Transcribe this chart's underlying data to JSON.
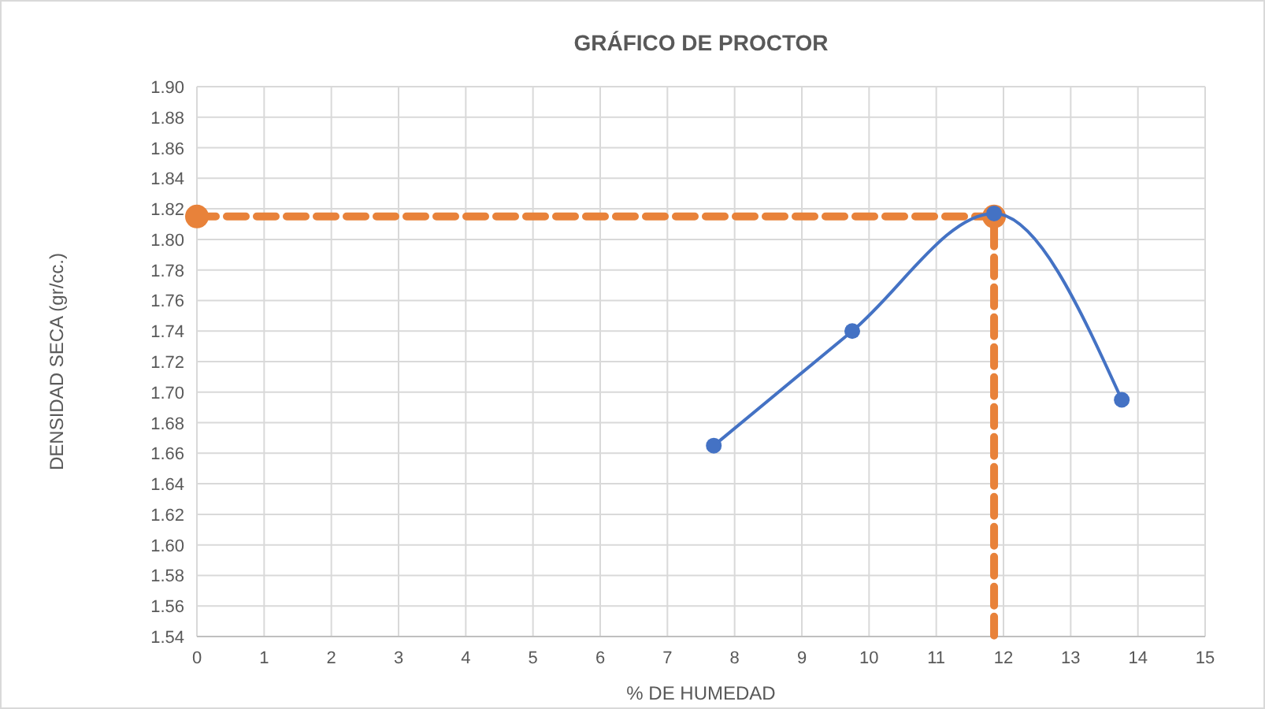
{
  "chart_data": {
    "type": "line",
    "title": "GRÁFICO DE PROCTOR",
    "xlabel": "% DE HUMEDAD",
    "ylabel": "DENSIDAD SECA (gr/cc.)",
    "xlim": [
      0,
      15
    ],
    "xticks": [
      0,
      1,
      2,
      3,
      4,
      5,
      6,
      7,
      8,
      9,
      10,
      11,
      12,
      13,
      14,
      15
    ],
    "ylim": [
      1.54,
      1.9
    ],
    "yticks": [
      {
        "value": 1.54,
        "label": "1.54"
      },
      {
        "value": 1.56,
        "label": "1.56"
      },
      {
        "value": 1.58,
        "label": "1.58"
      },
      {
        "value": 1.6,
        "label": "1.60"
      },
      {
        "value": 1.62,
        "label": "1.62"
      },
      {
        "value": 1.64,
        "label": "1.64"
      },
      {
        "value": 1.66,
        "label": "1.66"
      },
      {
        "value": 1.68,
        "label": "1.68"
      },
      {
        "value": 1.7,
        "label": "1.70"
      },
      {
        "value": 1.72,
        "label": "1.72"
      },
      {
        "value": 1.74,
        "label": "1.74"
      },
      {
        "value": 1.76,
        "label": "1.76"
      },
      {
        "value": 1.78,
        "label": "1.78"
      },
      {
        "value": 1.8,
        "label": "1.80"
      },
      {
        "value": 1.82,
        "label": "1.82"
      },
      {
        "value": 1.84,
        "label": "1.84"
      },
      {
        "value": 1.86,
        "label": "1.86"
      },
      {
        "value": 1.88,
        "label": "1.88"
      },
      {
        "value": 1.9,
        "label": "1.90"
      }
    ],
    "grid": true,
    "series": [
      {
        "color": "#e8823a",
        "x": [
          0,
          11.86,
          11.86
        ],
        "values": [
          1.815,
          1.815,
          1.54
        ],
        "line_style": "dashed",
        "marker": "none"
      },
      {
        "type": "scatter",
        "color": "#e8823a",
        "x": [
          0,
          11.86
        ],
        "values": [
          1.815,
          1.815
        ],
        "marker": "circle"
      },
      {
        "color": "#4472c4",
        "x": [
          7.69,
          9.75,
          11.86,
          13.76
        ],
        "values": [
          1.665,
          1.74,
          1.817,
          1.695
        ],
        "marker": "circle",
        "line_style": "solid"
      }
    ]
  }
}
